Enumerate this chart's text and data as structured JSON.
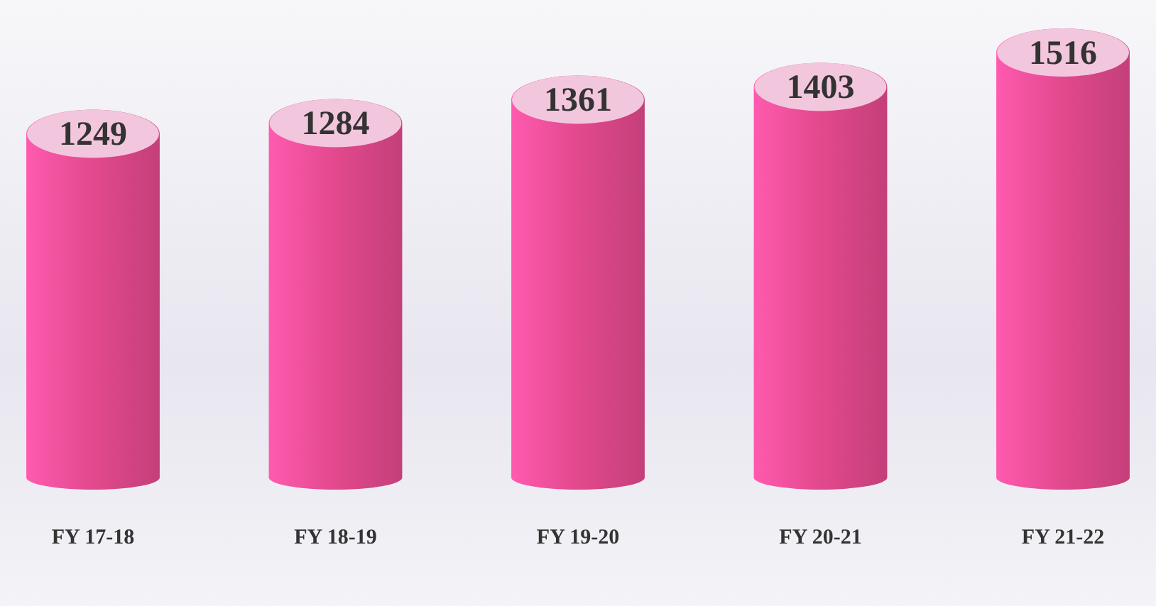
{
  "chart_data": {
    "type": "bar",
    "categories": [
      "FY 17-18",
      "FY 18-19",
      "FY 19-20",
      "FY 20-21",
      "FY 21-22"
    ],
    "values": [
      1249,
      1284,
      1361,
      1403,
      1516
    ],
    "color": "#e2498d",
    "data_labels": true
  }
}
